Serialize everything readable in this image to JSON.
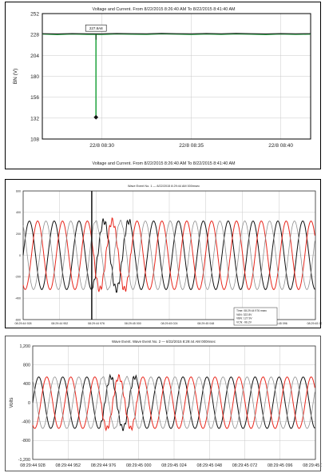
{
  "colors": {
    "black": "#111111",
    "red": "#e8271d",
    "gray": "#8f8f8f",
    "green": "#2ea84a",
    "grid": "#c9c9c9",
    "frame": "#000000"
  },
  "chart_data": [
    {
      "type": "line",
      "title": "Voltage and Current. From 8/22/2015 8:26:40 AM To 8/22/2015 8:41:40 AM",
      "footer": "Voltage and Current. From 8/22/2015 8:26:40 AM To 8/22/2015 8:41:40 AM",
      "ylabel": "BN (V)",
      "xlabel": "",
      "ylim": [
        108,
        252
      ],
      "yticks": [
        "252",
        "228",
        "204",
        "180",
        "156",
        "132",
        "108"
      ],
      "xticks": [
        "22/8 08:30",
        "22/8 08:35",
        "22/8 08:40"
      ],
      "grid": true,
      "series": [
        {
          "x": [
            "08:26:40",
            "08:27:30",
            "08:28:20",
            "08:29:10",
            "08:30:00",
            "08:30:50",
            "08:31:40",
            "08:32:30",
            "08:33:20",
            "08:34:10",
            "08:35:00",
            "08:35:50",
            "08:36:40",
            "08:37:30",
            "08:38:20",
            "08:39:10",
            "08:40:00",
            "08:40:50",
            "08:41:40"
          ],
          "values": [
            228.5,
            227.8,
            228.4,
            228.1,
            227.9,
            228.6,
            228.2,
            228.0,
            228.7,
            228.3,
            227.9,
            228.5,
            228.1,
            228.6,
            228.2,
            227.8,
            228.4,
            228.0,
            228.3
          ]
        },
        {
          "x": [
            "08:26:40",
            "08:27:30",
            "08:28:20",
            "08:29:10",
            "08:30:00",
            "08:30:50",
            "08:31:40",
            "08:32:30",
            "08:33:20",
            "08:34:10",
            "08:35:00",
            "08:35:50",
            "08:36:40",
            "08:37:30",
            "08:38:20",
            "08:39:10",
            "08:40:00",
            "08:40:50",
            "08:41:40"
          ],
          "values": [
            229.0,
            228.7,
            229.1,
            228.9,
            228.8,
            229.2,
            229.0,
            228.9,
            229.3,
            229.0,
            228.8,
            229.2,
            228.9,
            229.3,
            229.0,
            228.7,
            229.1,
            228.9,
            229.0
          ]
        }
      ],
      "event": {
        "time": "08:29:40",
        "min": 133,
        "label": "227.8A8"
      }
    },
    {
      "type": "line",
      "title": "Wave Event No. 1 — 8/22/2015 8:29:44 AM 000msec",
      "ylim": [
        -600,
        600
      ],
      "yticks": [
        "600",
        "400",
        "200",
        "0",
        "-200",
        "-400",
        "-600"
      ],
      "xticks": [
        "08:29:44 928",
        "08:29:44 952",
        "08:29:44 976",
        "08:29:45 000",
        "08:29:45 024",
        "08:29:45 048",
        "08:29:45 072",
        "08:29:45 096",
        "08:29:45 120"
      ],
      "x_range_ms": [
        928,
        1124
      ],
      "amplitude": 320,
      "period_ms": 16.667,
      "cursor_ms": 974,
      "disturbance_ms": [
        975,
        1000
      ],
      "series": [
        {
          "name": "black",
          "phase_deg": 0
        },
        {
          "name": "red",
          "phase_deg": -120
        },
        {
          "name": "gray",
          "phase_deg": 120
        }
      ],
      "readout": [
        "Time: 08:29:44 976 msec",
        "VAN: 322.8V",
        "VBN: 127.9V",
        "VCN: -96.2V"
      ]
    },
    {
      "type": "line",
      "title": "Wave Event. Wave Event No. 2 — 8/22/2015 8:29:44 AM 000msec",
      "ylabel": "Volts",
      "ylim": [
        -1200,
        1200
      ],
      "yticks": [
        "1,200",
        "800",
        "400",
        "0",
        "-400",
        "-800",
        "-1,200"
      ],
      "xticks": [
        "08:29:44 928",
        "08:29:44 952",
        "08:29:44 976",
        "08:29:45 000",
        "08:29:45 024",
        "08:29:45 048",
        "08:29:45 072",
        "08:29:45 096",
        "08:29:45 120"
      ],
      "x_range_ms": [
        928,
        1124
      ],
      "amplitude": 545,
      "period_ms": 16.667,
      "disturbance_ms": [
        975,
        1000
      ],
      "series": [
        {
          "name": "black",
          "phase_deg": 0
        },
        {
          "name": "red",
          "phase_deg": -120
        },
        {
          "name": "gray",
          "phase_deg": 120
        }
      ]
    }
  ]
}
